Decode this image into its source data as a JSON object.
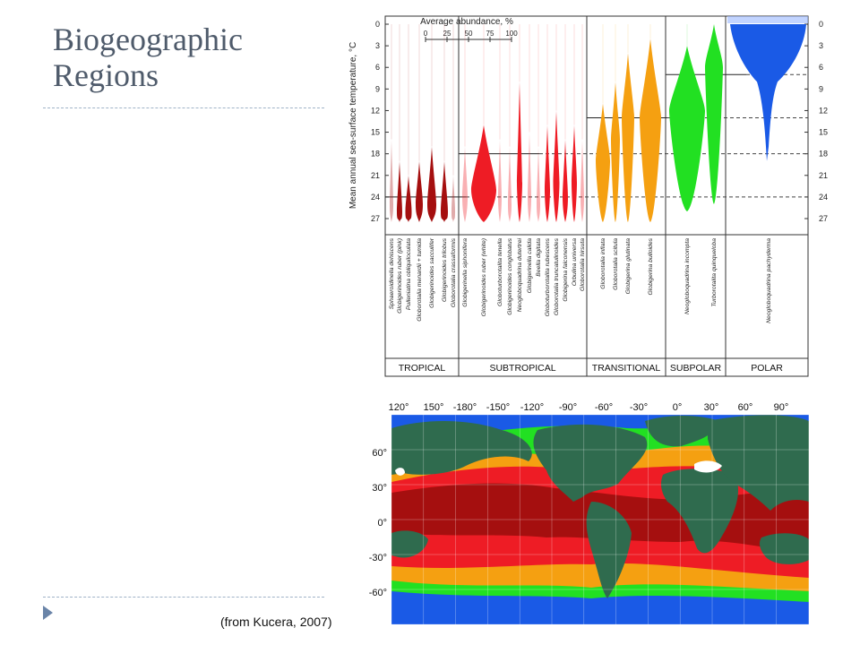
{
  "slide": {
    "title_line1": "Biogeographic",
    "title_line2": "Regions",
    "source": "(from Kucera, 2007)"
  },
  "figure_top": {
    "y_axis_label": "Mean annual sea-surface temperature, °C",
    "y_ticks": [
      "0",
      "3",
      "6",
      "9",
      "12",
      "15",
      "18",
      "21",
      "24",
      "27"
    ],
    "legend_title": "Average abundance, %",
    "legend_ticks": [
      "0",
      "25",
      "50",
      "75",
      "100"
    ],
    "regions": [
      "TROPICAL",
      "SUBTROPICAL",
      "TRANSITIONAL",
      "SUBPOLAR",
      "POLAR"
    ],
    "species": [
      "Sphaeroidinella dehiscens",
      "Globigerinoides ruber (pink)",
      "Pulleniatina obliquiloculata",
      "Globorotalia menardii + tumida",
      "Globigerinoides sacculifer",
      "Globigerinoides trilobus",
      "Globorotalia crassaformis",
      "Globigerinella siphonifera",
      "Globigerinoides ruber (white)",
      "Globoturborotalita tenella",
      "Globigerinoides conglobatus",
      "Neogloboquadrina dutertrei",
      "Globigerinella calida",
      "Beella digitata",
      "Globoturborotalita rubescens",
      "Globorotalia truncatulinoides",
      "Globigerina falconensis",
      "Orbulina universa",
      "Globorotalia hirsuta",
      "Globorotalia inflata",
      "Globorotalia scitula",
      "Globigerina glutinata",
      "Globigerina bulloides",
      "Neogloboquadrina incompta",
      "Turborotalita quinqueloba",
      "Neogloboquadrina pachyderma"
    ]
  },
  "figure_map": {
    "lon_labels": [
      "120°",
      "150°",
      "-180°",
      "-150°",
      "-120°",
      "-90°",
      "-60°",
      "-30°",
      "0°",
      "30°",
      "60°",
      "90°"
    ],
    "lat_labels": [
      "60°",
      "30°",
      "0°",
      "-30°",
      "-60°"
    ]
  },
  "colors": {
    "tropical": "#a50f0f",
    "subtropical": "#ee1c25",
    "transitional": "#f5a011",
    "subpolar": "#22e022",
    "polar": "#1a5ae6",
    "land": "#2f6b4e"
  }
}
